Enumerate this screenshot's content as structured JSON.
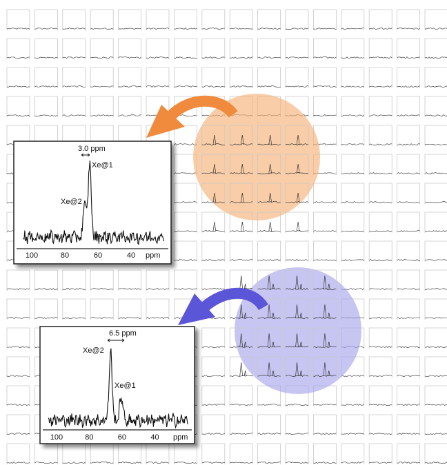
{
  "grid": {
    "rows": 16,
    "cols": 16
  },
  "highlight_regions": [
    {
      "name": "orange",
      "color": "#f08a3c",
      "circle_color": "#f5b27a",
      "spectrum_type": "single-peak"
    },
    {
      "name": "blue",
      "color": "#5b55d8",
      "circle_color": "#a9a6ea",
      "spectrum_type": "double-peak"
    }
  ],
  "inset_spectra": [
    {
      "id": "top",
      "separation_label": "3.0 ppm",
      "peak_major_label": "Xe@1",
      "peak_minor_label": "Xe@2",
      "x_ticks": [
        "100",
        "80",
        "60",
        "40"
      ],
      "x_unit": "ppm",
      "x_range": [
        105,
        20
      ],
      "peaks": [
        {
          "ppm": 65,
          "height": 1.0
        },
        {
          "ppm": 68,
          "height": 0.45
        }
      ]
    },
    {
      "id": "bottom",
      "separation_label": "6.5 ppm",
      "peak_major_label": "Xe@2",
      "peak_minor_label": "Xe@1",
      "x_ticks": [
        "100",
        "80",
        "60",
        "40"
      ],
      "x_unit": "ppm",
      "x_range": [
        105,
        20
      ],
      "peaks": [
        {
          "ppm": 67,
          "height": 1.0
        },
        {
          "ppm": 60.5,
          "height": 0.35
        }
      ]
    }
  ]
}
